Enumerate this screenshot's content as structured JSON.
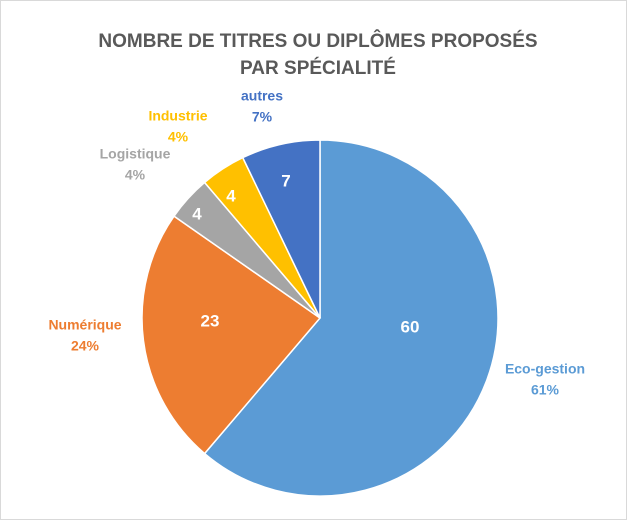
{
  "chart_data": {
    "type": "pie",
    "title": "NOMBRE DE TITRES OU DIPLÔMES PROPOSÉS PAR SPÉCIALITÉ",
    "categories": [
      "Eco-gestion",
      "Numérique",
      "Logistique",
      "Industrie",
      "autres"
    ],
    "values": [
      60,
      23,
      4,
      4,
      7
    ],
    "percent_labels": [
      "61%",
      "24%",
      "4%",
      "4%",
      "7%"
    ],
    "colors": [
      "#5b9bd5",
      "#ed7d31",
      "#a5a5a5",
      "#ffc000",
      "#4472c4"
    ]
  }
}
